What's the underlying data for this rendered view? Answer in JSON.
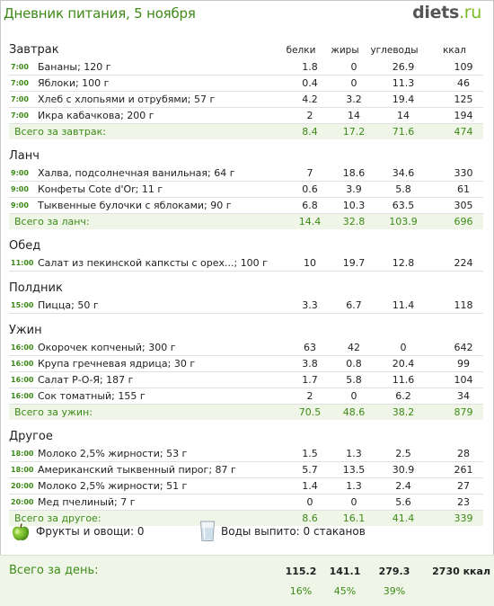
{
  "header": {
    "title": "Дневник питания, 5 ноября",
    "logo_main": "diets",
    "logo_suffix": ".ru"
  },
  "columns": {
    "protein": "белки",
    "fat": "жиры",
    "carbs": "углеводы",
    "kcal": "ккал"
  },
  "meals": [
    {
      "name": "Завтрак",
      "items": [
        {
          "time": "7:00",
          "food": "Бананы; 120 г",
          "p": "1.8",
          "f": "0",
          "c": "26.9",
          "k": "109"
        },
        {
          "time": "7:00",
          "food": "Яблоки; 100 г",
          "p": "0.4",
          "f": "0",
          "c": "11.3",
          "k": "46"
        },
        {
          "time": "7:00",
          "food": "Хлеб с хлопьями и отрубями; 57 г",
          "p": "4.2",
          "f": "3.2",
          "c": "19.4",
          "k": "125"
        },
        {
          "time": "7:00",
          "food": "Икра кабачкова; 200 г",
          "p": "2",
          "f": "14",
          "c": "14",
          "k": "194"
        }
      ],
      "total": {
        "label": "Всего за завтрак:",
        "p": "8.4",
        "f": "17.2",
        "c": "71.6",
        "k": "474"
      }
    },
    {
      "name": "Ланч",
      "items": [
        {
          "time": "9:00",
          "food": "Халва, подсолнечная ванильная; 64 г",
          "p": "7",
          "f": "18.6",
          "c": "34.6",
          "k": "330"
        },
        {
          "time": "9:00",
          "food": "Конфеты Cote d'Or; 11 г",
          "p": "0.6",
          "f": "3.9",
          "c": "5.8",
          "k": "61"
        },
        {
          "time": "9:00",
          "food": "Тыквенные булочки с яблоками; 90 г",
          "p": "6.8",
          "f": "10.3",
          "c": "63.5",
          "k": "305"
        }
      ],
      "total": {
        "label": "Всего за ланч:",
        "p": "14.4",
        "f": "32.8",
        "c": "103.9",
        "k": "696"
      }
    },
    {
      "name": "Обед",
      "items": [
        {
          "time": "11:00",
          "food": "Салат из пекинской капксты с орех...; 100 г",
          "p": "10",
          "f": "19.7",
          "c": "12.8",
          "k": "224"
        }
      ],
      "total": null
    },
    {
      "name": "Полдник",
      "items": [
        {
          "time": "15:00",
          "food": "Пицца; 50 г",
          "p": "3.3",
          "f": "6.7",
          "c": "11.4",
          "k": "118"
        }
      ],
      "total": null
    },
    {
      "name": "Ужин",
      "items": [
        {
          "time": "16:00",
          "food": "Окорочек копченый; 300 г",
          "p": "63",
          "f": "42",
          "c": "0",
          "k": "642"
        },
        {
          "time": "16:00",
          "food": "Крупа гречневая ядрица; 30 г",
          "p": "3.8",
          "f": "0.8",
          "c": "20.4",
          "k": "99"
        },
        {
          "time": "16:00",
          "food": "Салат Р-О-Я; 187 г",
          "p": "1.7",
          "f": "5.8",
          "c": "11.6",
          "k": "104"
        },
        {
          "time": "16:00",
          "food": "Сок томатный; 155 г",
          "p": "2",
          "f": "0",
          "c": "6.2",
          "k": "34"
        }
      ],
      "total": {
        "label": "Всего за ужин:",
        "p": "70.5",
        "f": "48.6",
        "c": "38.2",
        "k": "879"
      }
    },
    {
      "name": "Другое",
      "items": [
        {
          "time": "18:00",
          "food": "Молоко 2,5% жирности; 53 г",
          "p": "1.5",
          "f": "1.3",
          "c": "2.5",
          "k": "28"
        },
        {
          "time": "18:00",
          "food": "Американский тыквенный пирог; 87 г",
          "p": "5.7",
          "f": "13.5",
          "c": "30.9",
          "k": "261"
        },
        {
          "time": "20:00",
          "food": "Молоко 2,5% жирности; 51 г",
          "p": "1.4",
          "f": "1.3",
          "c": "2.4",
          "k": "27"
        },
        {
          "time": "20:00",
          "food": "Мед пчелиный; 7 г",
          "p": "0",
          "f": "0",
          "c": "5.6",
          "k": "23"
        }
      ],
      "total": {
        "label": "Всего за другое:",
        "p": "8.6",
        "f": "16.1",
        "c": "41.4",
        "k": "339"
      }
    }
  ],
  "extras": {
    "fruits": "Фрукты и овощи: 0",
    "water": "Воды выпито: 0 стаканов",
    "apple_icon": "apple-icon",
    "glass_icon": "water-glass-icon"
  },
  "day_total": {
    "label": "Всего за день:",
    "p": "115.2",
    "f": "141.1",
    "c": "279.3",
    "k": "2730 ккал",
    "p_pct": "16%",
    "f_pct": "45%",
    "c_pct": "39%"
  },
  "colors": {
    "accent_green": "#3d8a18",
    "total_bg": "#eff6e8",
    "logo_ru": "#7dbb24"
  }
}
